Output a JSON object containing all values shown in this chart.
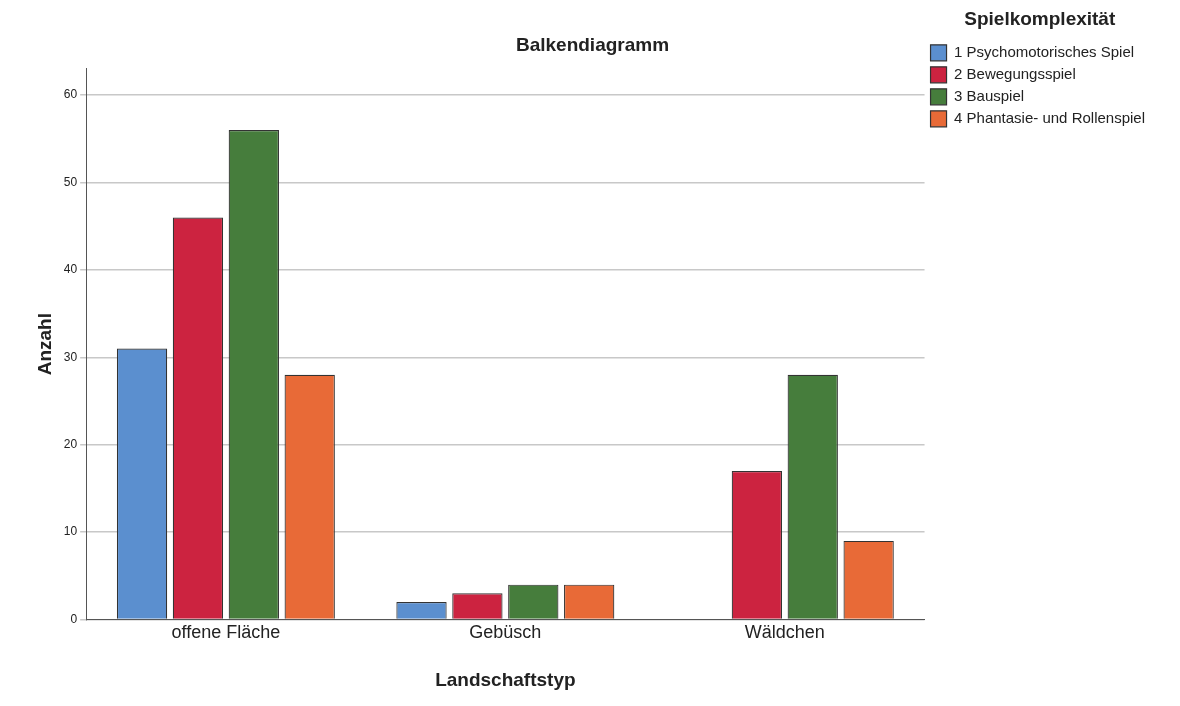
{
  "chart_data": {
    "type": "bar",
    "title": "Balkendiagramm",
    "xlabel": "Landschaftstyp",
    "ylabel": "Anzahl",
    "legend_title": "Spielkomplexität",
    "categories": [
      "offene Fläche",
      "Gebüsch",
      "Wäldchen"
    ],
    "series": [
      {
        "name": "1 Psychomotorisches Spiel",
        "color": "#5b8fcf",
        "values": [
          31,
          2,
          0
        ]
      },
      {
        "name": "2 Bewegungsspiel",
        "color": "#cc2340",
        "values": [
          46,
          3,
          17
        ]
      },
      {
        "name": "3 Bauspiel",
        "color": "#467d3c",
        "values": [
          56,
          4,
          28
        ]
      },
      {
        "name": "4 Phantasie- und Rollenspiel",
        "color": "#e86a37",
        "values": [
          28,
          4,
          9
        ]
      }
    ],
    "ylim": [
      0,
      63
    ],
    "yticks": [
      0,
      10,
      20,
      30,
      40,
      50,
      60
    ],
    "grid": "y",
    "legend": "top right"
  }
}
